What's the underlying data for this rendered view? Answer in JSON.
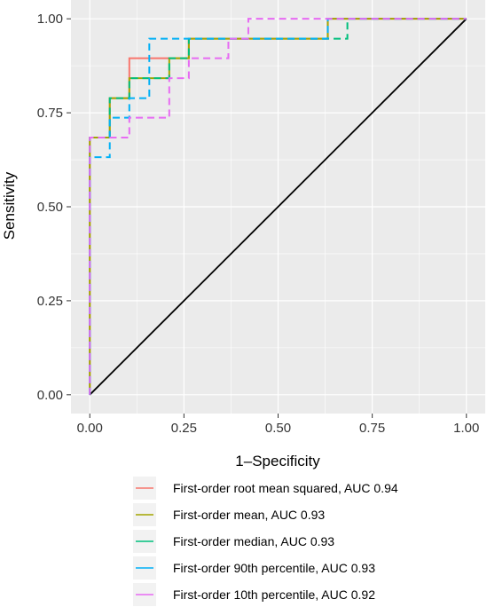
{
  "chart_data": {
    "type": "line",
    "xlabel": "1–Specificity",
    "ylabel": "Sensitivity",
    "xlim": [
      -0.05,
      1.05
    ],
    "ylim": [
      -0.05,
      1.05
    ],
    "x_ticks": [
      "0.00",
      "0.25",
      "0.50",
      "0.75",
      "1.00"
    ],
    "y_ticks": [
      "0.00",
      "0.25",
      "0.50",
      "0.75",
      "1.00"
    ],
    "grid": true,
    "legend_position": "bottom",
    "reference_line": {
      "x": [
        0,
        1
      ],
      "y": [
        0,
        1
      ],
      "color": "#000000"
    },
    "series": [
      {
        "name": "First-order root mean squared, AUC 0.94",
        "color": "#F8766D",
        "dash": "solid",
        "x": [
          0,
          0,
          0.053,
          0.053,
          0.105,
          0.105,
          0.211,
          0.211,
          0.263,
          0.263,
          0.632,
          0.632,
          1
        ],
        "y": [
          0,
          0.684,
          0.684,
          0.789,
          0.789,
          0.895,
          0.895,
          0.895,
          0.895,
          0.947,
          0.947,
          1,
          1
        ]
      },
      {
        "name": "First-order mean, AUC 0.93",
        "color": "#A3A500",
        "dash": "solid",
        "x": [
          0,
          0,
          0.053,
          0.053,
          0.105,
          0.105,
          0.211,
          0.211,
          0.263,
          0.263,
          0.632,
          0.632,
          1
        ],
        "y": [
          0,
          0.684,
          0.684,
          0.789,
          0.789,
          0.842,
          0.842,
          0.895,
          0.895,
          0.947,
          0.947,
          1,
          1
        ]
      },
      {
        "name": "First-order median, AUC 0.93",
        "color": "#00BF7D",
        "dash": "dashed",
        "x": [
          0,
          0,
          0.053,
          0.053,
          0.105,
          0.105,
          0.211,
          0.211,
          0.263,
          0.263,
          0.684,
          0.684,
          1
        ],
        "y": [
          0,
          0.684,
          0.684,
          0.789,
          0.789,
          0.842,
          0.842,
          0.895,
          0.895,
          0.947,
          0.947,
          1,
          1
        ]
      },
      {
        "name": "First-order 90th percentile, AUC 0.93",
        "color": "#00B0F6",
        "dash": "dashed",
        "x": [
          0,
          0,
          0.053,
          0.053,
          0.105,
          0.105,
          0.158,
          0.158,
          0.632,
          0.632,
          1
        ],
        "y": [
          0,
          0.632,
          0.632,
          0.737,
          0.737,
          0.789,
          0.789,
          0.947,
          0.947,
          1,
          1
        ]
      },
      {
        "name": "First-order 10th percentile, AUC 0.92",
        "color": "#E76BF3",
        "dash": "dashed",
        "x": [
          0,
          0,
          0.053,
          0.053,
          0.105,
          0.105,
          0.211,
          0.211,
          0.263,
          0.263,
          0.368,
          0.368,
          0.421,
          0.421,
          1
        ],
        "y": [
          0,
          0.684,
          0.684,
          0.684,
          0.684,
          0.737,
          0.737,
          0.842,
          0.842,
          0.895,
          0.895,
          0.947,
          0.947,
          1,
          1
        ]
      }
    ]
  }
}
